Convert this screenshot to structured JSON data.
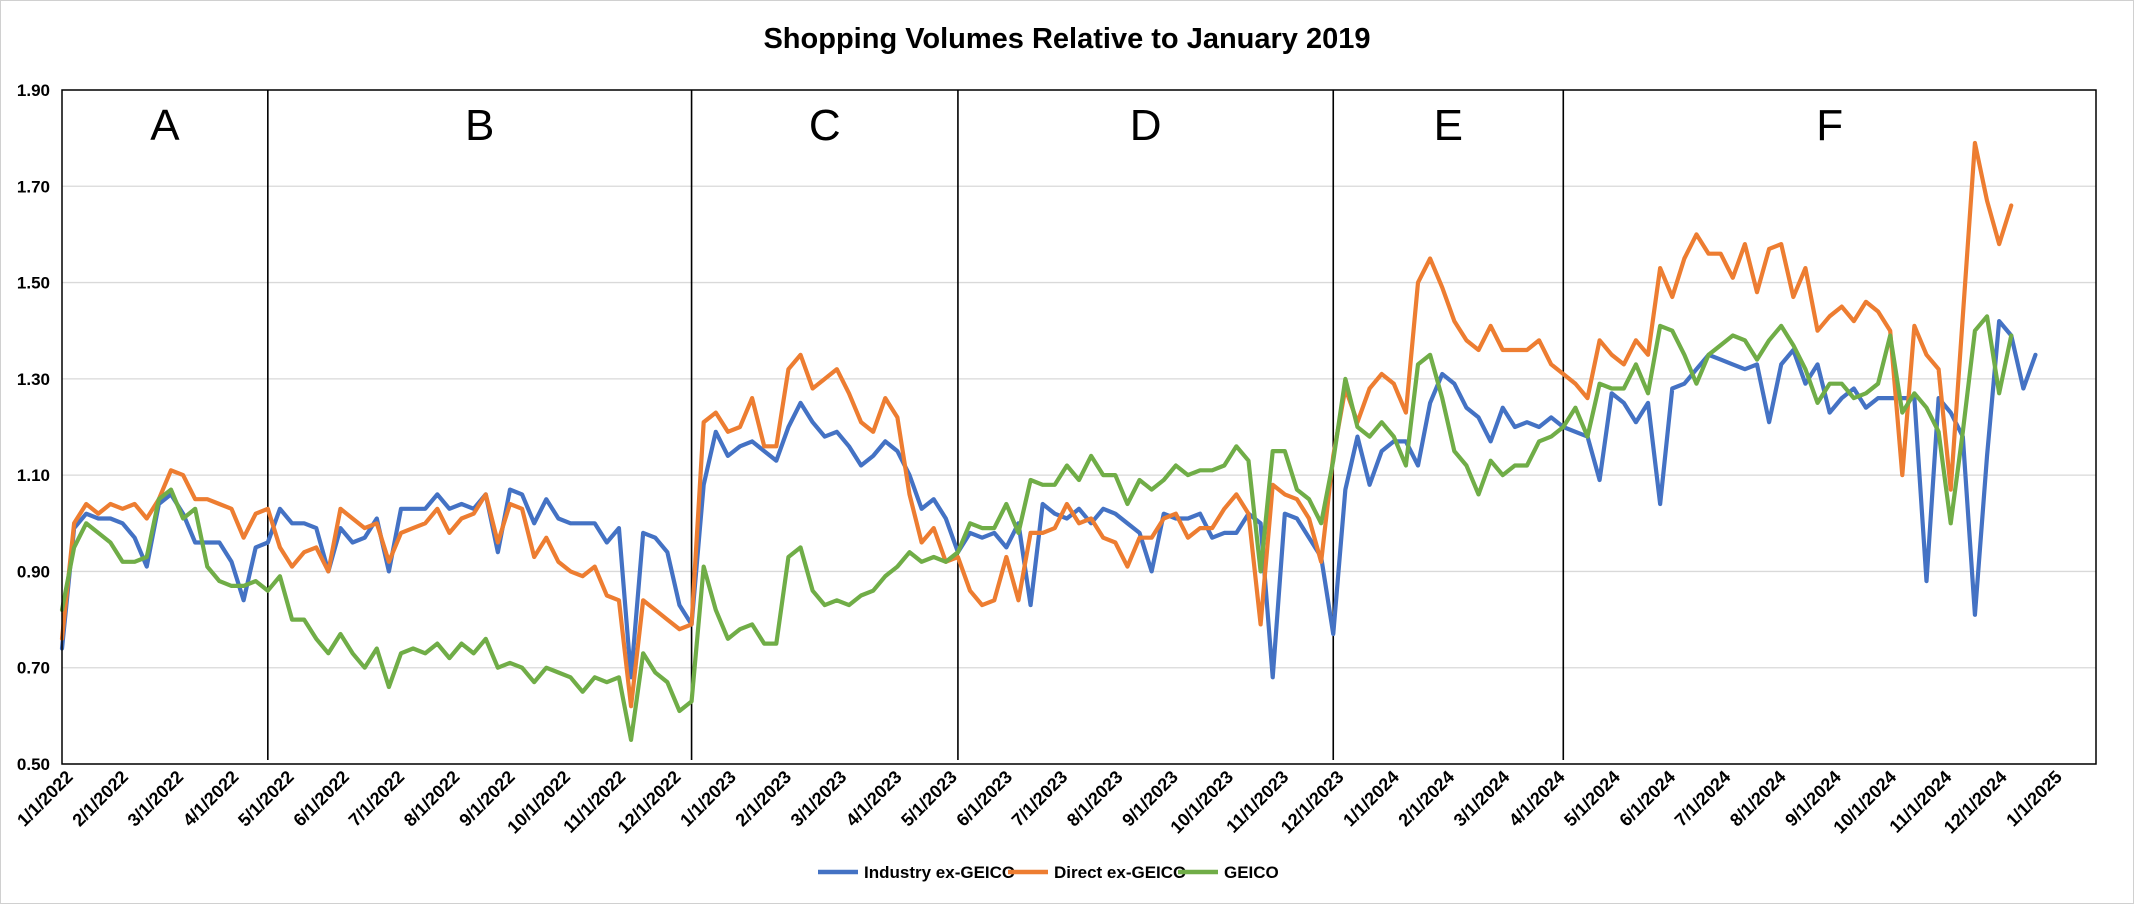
{
  "chart_data": {
    "type": "line",
    "title": "Shopping Volumes Relative to January 2019",
    "xlabel": "",
    "ylabel": "",
    "ylim": [
      0.5,
      1.9
    ],
    "y_ticks": [
      "0.50",
      "0.70",
      "0.90",
      "1.10",
      "1.30",
      "1.50",
      "1.70",
      "1.90"
    ],
    "x_tick_labels": [
      "1/1/2022",
      "2/1/2022",
      "3/1/2022",
      "4/1/2022",
      "5/1/2022",
      "6/1/2022",
      "7/1/2022",
      "8/1/2022",
      "9/1/2022",
      "10/1/2022",
      "11/1/2022",
      "12/1/2022",
      "1/1/2023",
      "2/1/2023",
      "3/1/2023",
      "4/1/2023",
      "5/1/2023",
      "6/1/2023",
      "7/1/2023",
      "8/1/2023",
      "9/1/2023",
      "10/1/2023",
      "11/1/2023",
      "12/1/2023",
      "1/1/2024",
      "2/1/2024",
      "3/1/2024",
      "4/1/2024",
      "5/1/2024",
      "6/1/2024",
      "7/1/2024",
      "8/1/2024",
      "9/1/2024",
      "10/1/2024",
      "11/1/2024",
      "12/1/2024",
      "1/1/2025"
    ],
    "x_range_weeks": [
      0,
      168
    ],
    "grid": "horizontal",
    "legend_position": "bottom-center",
    "segments": [
      {
        "label": "A",
        "start_week": 0,
        "end_week": 17
      },
      {
        "label": "B",
        "start_week": 17,
        "end_week": 52
      },
      {
        "label": "C",
        "start_week": 52,
        "end_week": 74
      },
      {
        "label": "D",
        "start_week": 74,
        "end_week": 105
      },
      {
        "label": "E",
        "start_week": 105,
        "end_week": 124
      },
      {
        "label": "F",
        "start_week": 124,
        "end_week": 168
      }
    ],
    "series": [
      {
        "name": "Industry ex-GEICO",
        "color": "#4472C4",
        "values": [
          0.74,
          0.99,
          1.02,
          1.01,
          1.01,
          1.0,
          0.97,
          0.91,
          1.04,
          1.06,
          1.02,
          0.96,
          0.96,
          0.96,
          0.92,
          0.84,
          0.95,
          0.96,
          1.03,
          1.0,
          1.0,
          0.99,
          0.9,
          0.99,
          0.96,
          0.97,
          1.01,
          0.9,
          1.03,
          1.03,
          1.03,
          1.06,
          1.03,
          1.04,
          1.03,
          1.06,
          0.94,
          1.07,
          1.06,
          1.0,
          1.05,
          1.01,
          1.0,
          1.0,
          1.0,
          0.96,
          0.99,
          0.68,
          0.98,
          0.97,
          0.94,
          0.83,
          0.79,
          1.08,
          1.19,
          1.14,
          1.16,
          1.17,
          1.15,
          1.13,
          1.2,
          1.25,
          1.21,
          1.18,
          1.19,
          1.16,
          1.12,
          1.14,
          1.17,
          1.15,
          1.1,
          1.03,
          1.05,
          1.01,
          0.94,
          0.98,
          0.97,
          0.98,
          0.95,
          1.0,
          0.83,
          1.04,
          1.02,
          1.01,
          1.03,
          1.0,
          1.03,
          1.02,
          1.0,
          0.98,
          0.9,
          1.02,
          1.01,
          1.01,
          1.02,
          0.97,
          0.98,
          0.98,
          1.02,
          1.0,
          0.68,
          1.02,
          1.01,
          0.97,
          0.93,
          0.77,
          1.07,
          1.18,
          1.08,
          1.15,
          1.17,
          1.17,
          1.12,
          1.25,
          1.31,
          1.29,
          1.24,
          1.22,
          1.17,
          1.24,
          1.2,
          1.21,
          1.2,
          1.22,
          1.2,
          1.19,
          1.18,
          1.09,
          1.27,
          1.25,
          1.21,
          1.25,
          1.04,
          1.28,
          1.29,
          1.32,
          1.35,
          1.34,
          1.33,
          1.32,
          1.33,
          1.21,
          1.33,
          1.36,
          1.29,
          1.33,
          1.23,
          1.26,
          1.28,
          1.24,
          1.26,
          1.26,
          1.26,
          1.26,
          0.88,
          1.26,
          1.23,
          1.18,
          0.81,
          1.14,
          1.42,
          1.39,
          1.28,
          1.35
        ]
      },
      {
        "name": "Direct ex-GEICO",
        "color": "#ED7D31",
        "values": [
          0.76,
          1.0,
          1.04,
          1.02,
          1.04,
          1.03,
          1.04,
          1.01,
          1.05,
          1.11,
          1.1,
          1.05,
          1.05,
          1.04,
          1.03,
          0.97,
          1.02,
          1.03,
          0.95,
          0.91,
          0.94,
          0.95,
          0.9,
          1.03,
          1.01,
          0.99,
          1.0,
          0.92,
          0.98,
          0.99,
          1.0,
          1.03,
          0.98,
          1.01,
          1.02,
          1.06,
          0.96,
          1.04,
          1.03,
          0.93,
          0.97,
          0.92,
          0.9,
          0.89,
          0.91,
          0.85,
          0.84,
          0.62,
          0.84,
          0.82,
          0.8,
          0.78,
          0.79,
          1.21,
          1.23,
          1.19,
          1.2,
          1.26,
          1.16,
          1.16,
          1.32,
          1.35,
          1.28,
          1.3,
          1.32,
          1.27,
          1.21,
          1.19,
          1.26,
          1.22,
          1.06,
          0.96,
          0.99,
          0.92,
          0.93,
          0.86,
          0.83,
          0.84,
          0.93,
          0.84,
          0.98,
          0.98,
          0.99,
          1.04,
          1.0,
          1.01,
          0.97,
          0.96,
          0.91,
          0.97,
          0.97,
          1.01,
          1.02,
          0.97,
          0.99,
          0.99,
          1.03,
          1.06,
          1.02,
          0.79,
          1.08,
          1.06,
          1.05,
          1.01,
          0.92,
          1.14,
          1.28,
          1.21,
          1.28,
          1.31,
          1.29,
          1.23,
          1.5,
          1.55,
          1.49,
          1.42,
          1.38,
          1.36,
          1.41,
          1.36,
          1.36,
          1.36,
          1.38,
          1.33,
          1.31,
          1.29,
          1.26,
          1.38,
          1.35,
          1.33,
          1.38,
          1.35,
          1.53,
          1.47,
          1.55,
          1.6,
          1.56,
          1.56,
          1.51,
          1.58,
          1.48,
          1.57,
          1.58,
          1.47,
          1.53,
          1.4,
          1.43,
          1.45,
          1.42,
          1.46,
          1.44,
          1.4,
          1.1,
          1.41,
          1.35,
          1.32,
          1.07,
          1.43,
          1.79,
          1.67,
          1.58,
          1.66
        ]
      },
      {
        "name": "GEICO",
        "color": "#70AD47",
        "values": [
          0.82,
          0.95,
          1.0,
          0.98,
          0.96,
          0.92,
          0.92,
          0.93,
          1.05,
          1.07,
          1.01,
          1.03,
          0.91,
          0.88,
          0.87,
          0.87,
          0.88,
          0.86,
          0.89,
          0.8,
          0.8,
          0.76,
          0.73,
          0.77,
          0.73,
          0.7,
          0.74,
          0.66,
          0.73,
          0.74,
          0.73,
          0.75,
          0.72,
          0.75,
          0.73,
          0.76,
          0.7,
          0.71,
          0.7,
          0.67,
          0.7,
          0.69,
          0.68,
          0.65,
          0.68,
          0.67,
          0.68,
          0.55,
          0.73,
          0.69,
          0.67,
          0.61,
          0.63,
          0.91,
          0.82,
          0.76,
          0.78,
          0.79,
          0.75,
          0.75,
          0.93,
          0.95,
          0.86,
          0.83,
          0.84,
          0.83,
          0.85,
          0.86,
          0.89,
          0.91,
          0.94,
          0.92,
          0.93,
          0.92,
          0.94,
          1.0,
          0.99,
          0.99,
          1.04,
          0.98,
          1.09,
          1.08,
          1.08,
          1.12,
          1.09,
          1.14,
          1.1,
          1.1,
          1.04,
          1.09,
          1.07,
          1.09,
          1.12,
          1.1,
          1.11,
          1.11,
          1.12,
          1.16,
          1.13,
          0.9,
          1.15,
          1.15,
          1.07,
          1.05,
          1.0,
          1.13,
          1.3,
          1.2,
          1.18,
          1.21,
          1.18,
          1.12,
          1.33,
          1.35,
          1.26,
          1.15,
          1.12,
          1.06,
          1.13,
          1.1,
          1.12,
          1.12,
          1.17,
          1.18,
          1.2,
          1.24,
          1.18,
          1.29,
          1.28,
          1.28,
          1.33,
          1.27,
          1.41,
          1.4,
          1.35,
          1.29,
          1.35,
          1.37,
          1.39,
          1.38,
          1.34,
          1.38,
          1.41,
          1.37,
          1.32,
          1.25,
          1.29,
          1.29,
          1.26,
          1.27,
          1.29,
          1.39,
          1.23,
          1.27,
          1.24,
          1.19,
          1.0,
          1.19,
          1.4,
          1.43,
          1.27,
          1.39
        ]
      }
    ]
  }
}
